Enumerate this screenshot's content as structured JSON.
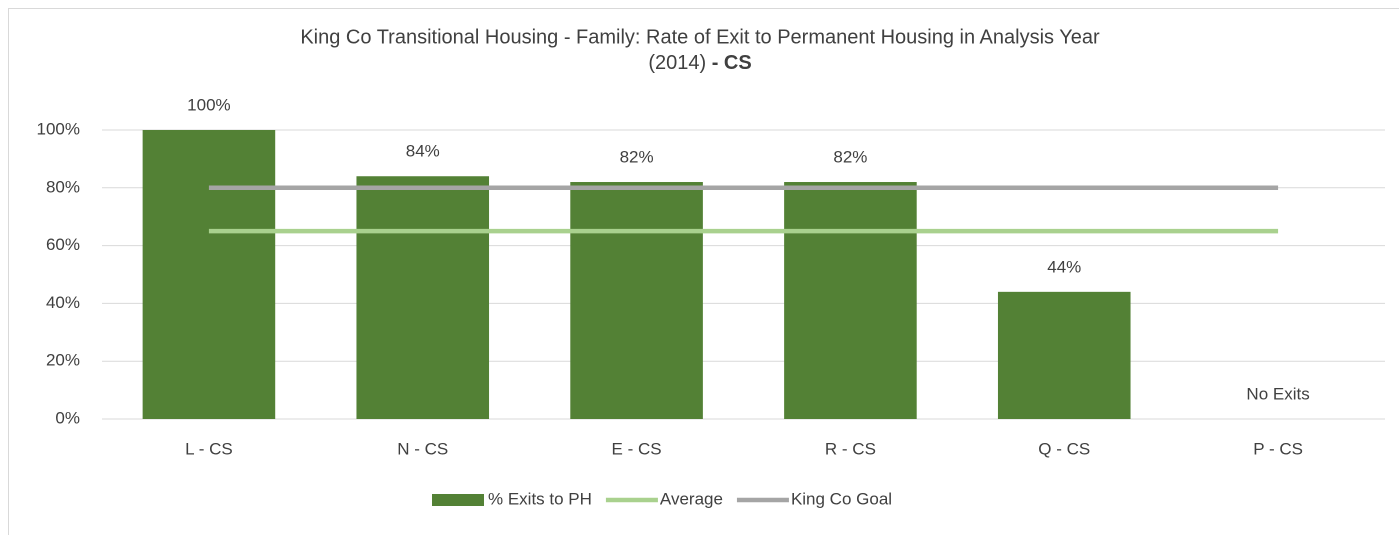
{
  "chart_data": {
    "type": "bar",
    "title_lines": [
      "King Co Transitional Housing - Family: Rate of Exit to Permanent Housing in Analysis Year",
      "(2014)"
    ],
    "title_emphasis": "- CS",
    "categories": [
      "L - CS",
      "N - CS",
      "E - CS",
      "R - CS",
      "Q - CS",
      "P - CS"
    ],
    "series": [
      {
        "name": "% Exits to PH",
        "type": "bar",
        "color": "#538135",
        "values": [
          100,
          84,
          82,
          82,
          44,
          null
        ],
        "value_labels": [
          "100%",
          "84%",
          "82%",
          "82%",
          "44%",
          "No Exits"
        ]
      },
      {
        "name": "Average",
        "type": "line",
        "color": "#a9d18e",
        "values": [
          65,
          65,
          65,
          65,
          65,
          65
        ]
      },
      {
        "name": "King Co Goal",
        "type": "line",
        "color": "#a5a5a5",
        "values": [
          80,
          80,
          80,
          80,
          80,
          80
        ]
      }
    ],
    "ylim": [
      0,
      100
    ],
    "yticks": [
      {
        "value": 0,
        "label": "0%"
      },
      {
        "value": 20,
        "label": "20%"
      },
      {
        "value": 40,
        "label": "40%"
      },
      {
        "value": 60,
        "label": "60%"
      },
      {
        "value": 80,
        "label": "80%"
      },
      {
        "value": 100,
        "label": "100%"
      }
    ],
    "grid": true,
    "legend": "bottom"
  }
}
